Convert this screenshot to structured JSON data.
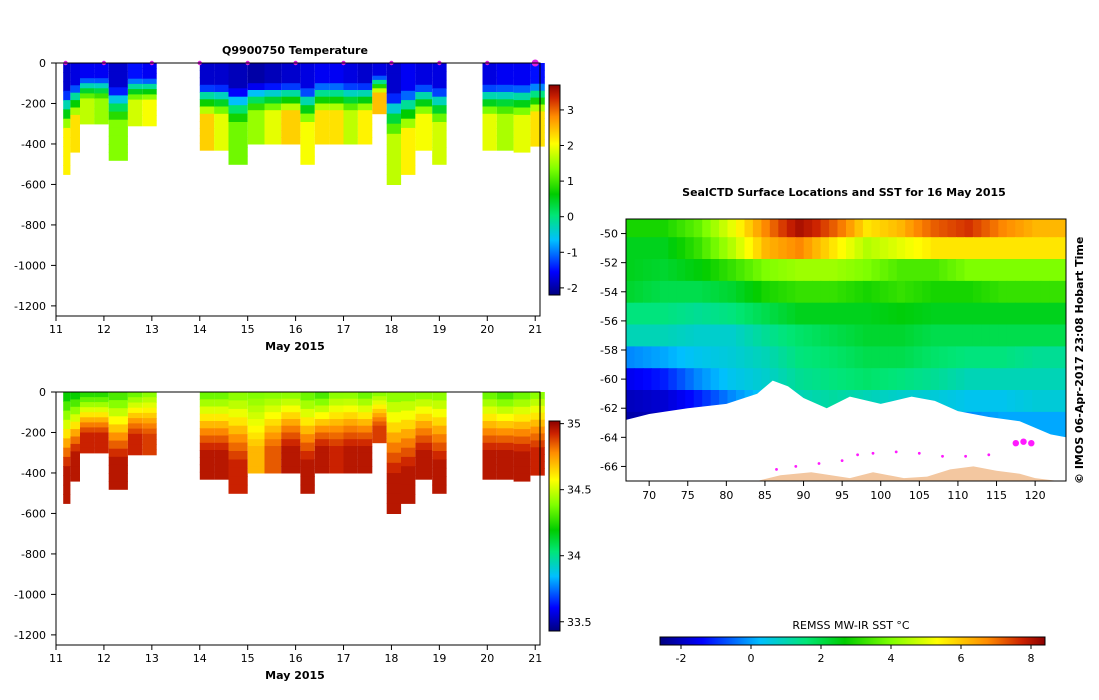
{
  "chart_data": [
    {
      "type": "heatmap",
      "id": "temperature",
      "title": "Q9900750  Temperature",
      "xlabel": "May 2015",
      "ylabel": "",
      "x_ticks": [
        "11",
        "12",
        "13",
        "14",
        "15",
        "16",
        "17",
        "18",
        "19",
        "20",
        "21"
      ],
      "y_ticks": [
        "0",
        "-200",
        "-400",
        "-600",
        "-800",
        "-1000",
        "-1200"
      ],
      "xlim": [
        11,
        21.1
      ],
      "ylim": [
        -1250,
        0
      ],
      "colorbar": {
        "ticks": [
          "3",
          "2",
          "1",
          "0",
          "-1",
          "-2"
        ],
        "range": [
          -2.2,
          3.7
        ],
        "palette": [
          "#00007f",
          "#0000ff",
          "#00bfff",
          "#00e676",
          "#00cc00",
          "#7fff00",
          "#ffff00",
          "#ff8c00",
          "#cc2200",
          "#8b0000"
        ]
      },
      "surface_markers_day": [
        11.2,
        12.0,
        13.0,
        14.0,
        15.0,
        16.0,
        17.0,
        18.0,
        19.0,
        20.0,
        21.0
      ],
      "profiles": [
        {
          "day": 11.15,
          "depth": 550,
          "surface": -1.8,
          "deep": 1.8
        },
        {
          "day": 11.3,
          "depth": 440,
          "surface": -1.7,
          "deep": 1.9
        },
        {
          "day": 11.5,
          "depth": 300,
          "surface": -1.6,
          "deep": 1.4
        },
        {
          "day": 11.8,
          "depth": 300,
          "surface": -1.6,
          "deep": 1.2
        },
        {
          "day": 12.1,
          "depth": 480,
          "surface": -1.8,
          "deep": 1.1
        },
        {
          "day": 12.5,
          "depth": 310,
          "surface": -1.5,
          "deep": 1.5
        },
        {
          "day": 12.8,
          "depth": 310,
          "surface": -1.6,
          "deep": 1.7
        },
        {
          "day": 14.0,
          "depth": 430,
          "surface": -1.8,
          "deep": 2.0
        },
        {
          "day": 14.3,
          "depth": 430,
          "surface": -1.8,
          "deep": 1.6
        },
        {
          "day": 14.6,
          "depth": 500,
          "surface": -1.9,
          "deep": 1.0
        },
        {
          "day": 15.0,
          "depth": 400,
          "surface": -2.0,
          "deep": 1.2
        },
        {
          "day": 15.35,
          "depth": 400,
          "surface": -1.9,
          "deep": 1.6
        },
        {
          "day": 15.7,
          "depth": 400,
          "surface": -1.8,
          "deep": 2.0
        },
        {
          "day": 16.1,
          "depth": 500,
          "surface": -1.7,
          "deep": 1.7
        },
        {
          "day": 16.4,
          "depth": 400,
          "surface": -1.6,
          "deep": 1.9
        },
        {
          "day": 16.7,
          "depth": 400,
          "surface": -1.6,
          "deep": 1.9
        },
        {
          "day": 17.0,
          "depth": 400,
          "surface": -1.7,
          "deep": 1.4
        },
        {
          "day": 17.3,
          "depth": 400,
          "surface": -1.8,
          "deep": 1.8
        },
        {
          "day": 17.6,
          "depth": 250,
          "surface": -1.7,
          "deep": 2.1
        },
        {
          "day": 17.9,
          "depth": 600,
          "surface": -1.8,
          "deep": 1.4
        },
        {
          "day": 18.2,
          "depth": 550,
          "surface": -1.6,
          "deep": 1.8
        },
        {
          "day": 18.5,
          "depth": 430,
          "surface": -1.7,
          "deep": 1.7
        },
        {
          "day": 18.85,
          "depth": 500,
          "surface": -1.7,
          "deep": 1.5
        },
        {
          "day": 19.9,
          "depth": 430,
          "surface": -1.7,
          "deep": 1.6
        },
        {
          "day": 20.2,
          "depth": 430,
          "surface": -1.6,
          "deep": 1.3
        },
        {
          "day": 20.55,
          "depth": 440,
          "surface": -1.6,
          "deep": 1.6
        },
        {
          "day": 20.9,
          "depth": 410,
          "surface": -1.5,
          "deep": 1.9
        }
      ]
    },
    {
      "type": "heatmap",
      "id": "salinity",
      "title": "",
      "xlabel": "May 2015",
      "ylabel": "",
      "x_ticks": [
        "11",
        "12",
        "13",
        "14",
        "15",
        "16",
        "17",
        "18",
        "19",
        "20",
        "21"
      ],
      "y_ticks": [
        "0",
        "-200",
        "-400",
        "-600",
        "-800",
        "-1000",
        "-1200"
      ],
      "xlim": [
        11,
        21.1
      ],
      "ylim": [
        -1250,
        0
      ],
      "colorbar": {
        "ticks": [
          "35",
          "34.5",
          "34",
          "33.5"
        ],
        "range": [
          33.43,
          35.02
        ],
        "palette": [
          "#00007f",
          "#0000ff",
          "#00bfff",
          "#00e676",
          "#00cc00",
          "#7fff00",
          "#ffff00",
          "#ff8c00",
          "#cc2200",
          "#8b0000"
        ]
      },
      "profiles": [
        {
          "day": 11.15,
          "depth": 550,
          "surface": 34.1,
          "deep": 34.9
        },
        {
          "day": 11.3,
          "depth": 440,
          "surface": 34.1,
          "deep": 34.9
        },
        {
          "day": 11.5,
          "depth": 300,
          "surface": 34.15,
          "deep": 34.85
        },
        {
          "day": 11.8,
          "depth": 300,
          "surface": 34.15,
          "deep": 34.85
        },
        {
          "day": 12.1,
          "depth": 480,
          "surface": 34.2,
          "deep": 34.9
        },
        {
          "day": 12.5,
          "depth": 310,
          "surface": 34.25,
          "deep": 34.85
        },
        {
          "day": 12.8,
          "depth": 310,
          "surface": 34.3,
          "deep": 34.8
        },
        {
          "day": 14.0,
          "depth": 430,
          "surface": 34.25,
          "deep": 34.9
        },
        {
          "day": 14.3,
          "depth": 430,
          "surface": 34.25,
          "deep": 34.9
        },
        {
          "day": 14.6,
          "depth": 500,
          "surface": 34.3,
          "deep": 34.85
        },
        {
          "day": 15.0,
          "depth": 400,
          "surface": 34.3,
          "deep": 34.6
        },
        {
          "day": 15.35,
          "depth": 400,
          "surface": 34.3,
          "deep": 34.75
        },
        {
          "day": 15.7,
          "depth": 400,
          "surface": 34.3,
          "deep": 34.9
        },
        {
          "day": 16.1,
          "depth": 500,
          "surface": 34.25,
          "deep": 34.9
        },
        {
          "day": 16.4,
          "depth": 400,
          "surface": 34.2,
          "deep": 34.9
        },
        {
          "day": 16.7,
          "depth": 400,
          "surface": 34.3,
          "deep": 34.85
        },
        {
          "day": 17.0,
          "depth": 400,
          "surface": 34.3,
          "deep": 34.9
        },
        {
          "day": 17.3,
          "depth": 400,
          "surface": 34.25,
          "deep": 34.9
        },
        {
          "day": 17.6,
          "depth": 250,
          "surface": 34.3,
          "deep": 34.8
        },
        {
          "day": 17.9,
          "depth": 600,
          "surface": 34.3,
          "deep": 34.9
        },
        {
          "day": 18.2,
          "depth": 550,
          "surface": 34.3,
          "deep": 34.9
        },
        {
          "day": 18.5,
          "depth": 430,
          "surface": 34.3,
          "deep": 34.9
        },
        {
          "day": 18.85,
          "depth": 500,
          "surface": 34.3,
          "deep": 34.9
        },
        {
          "day": 19.9,
          "depth": 430,
          "surface": 34.25,
          "deep": 34.9
        },
        {
          "day": 20.2,
          "depth": 430,
          "surface": 34.2,
          "deep": 34.9
        },
        {
          "day": 20.55,
          "depth": 440,
          "surface": 34.25,
          "deep": 34.9
        },
        {
          "day": 20.9,
          "depth": 410,
          "surface": 34.3,
          "deep": 34.85
        }
      ]
    },
    {
      "type": "heatmap",
      "id": "sst-map",
      "title": "SealCTD Surface Locations and SST for 16 May 2015",
      "xlabel": "",
      "ylabel": "",
      "x_ticks": [
        "70",
        "75",
        "80",
        "85",
        "90",
        "95",
        "100",
        "105",
        "110",
        "115",
        "120"
      ],
      "y_ticks": [
        "-50",
        "-52",
        "-54",
        "-56",
        "-58",
        "-60",
        "-62",
        "-64",
        "-66"
      ],
      "xlim": [
        67,
        124
      ],
      "ylim": [
        -67,
        -49
      ],
      "side_label": "© IMOS 06-Apr-2017 23:08 Hobart Time",
      "colorbar": {
        "label": "REMSS MW-IR SST °C",
        "ticks": [
          "-2",
          "0",
          "2",
          "4",
          "6",
          "8"
        ],
        "range": [
          -2.6,
          8.4
        ],
        "palette": [
          "#00007f",
          "#0000ff",
          "#00bfff",
          "#00e676",
          "#00cc00",
          "#7fff00",
          "#ffff00",
          "#ff8c00",
          "#cc2200",
          "#8b0000"
        ]
      },
      "sst_rows": [
        {
          "lat": -49.5,
          "values": [
            2.5,
            2.5,
            3.2,
            4.5,
            6.0,
            7.8,
            6.5,
            5.0,
            5.5,
            6.5,
            7.0,
            6.0,
            5.5
          ]
        },
        {
          "lat": -51.0,
          "values": [
            2.0,
            2.0,
            2.8,
            4.0,
            5.5,
            6.0,
            5.0,
            4.0,
            4.5,
            5.0,
            5.0,
            5.0,
            5.0
          ]
        },
        {
          "lat": -52.5,
          "values": [
            2.0,
            1.8,
            2.2,
            2.8,
            3.5,
            3.8,
            3.8,
            3.5,
            3.0,
            3.0,
            3.5,
            3.5,
            3.5
          ]
        },
        {
          "lat": -54.0,
          "values": [
            1.8,
            1.5,
            1.5,
            1.8,
            2.5,
            2.8,
            2.8,
            2.5,
            2.8,
            2.5,
            2.5,
            2.8,
            2.8
          ]
        },
        {
          "lat": -55.5,
          "values": [
            1.0,
            1.0,
            0.8,
            1.0,
            1.5,
            2.0,
            2.0,
            2.0,
            2.2,
            2.0,
            2.0,
            2.0,
            2.0
          ]
        },
        {
          "lat": -57.0,
          "values": [
            0.5,
            0.5,
            0.3,
            0.3,
            0.8,
            1.2,
            1.5,
            1.8,
            1.8,
            1.5,
            1.5,
            1.5,
            1.5
          ]
        },
        {
          "lat": -58.5,
          "values": [
            -0.5,
            -0.3,
            0.0,
            0.2,
            0.5,
            1.0,
            1.2,
            1.5,
            1.5,
            1.2,
            1.0,
            1.0,
            0.8
          ]
        },
        {
          "lat": -60.0,
          "values": [
            -1.5,
            -1.2,
            -0.5,
            0.0,
            0.3,
            0.8,
            1.0,
            1.2,
            1.0,
            0.8,
            0.5,
            0.5,
            0.5
          ]
        },
        {
          "lat": -61.5,
          "values": [
            -2.0,
            -1.8,
            -1.2,
            -0.5,
            0.0,
            0.5,
            0.7,
            0.5,
            0.3,
            0.2,
            0.0,
            0.0,
            0.2
          ]
        },
        {
          "lat": -63.0,
          "values": [
            -2.2,
            -2.0,
            -1.5,
            -1.0,
            -0.5,
            0.0,
            0.3,
            0.0,
            -0.3,
            -0.5,
            -0.5,
            -0.3,
            -0.3
          ]
        }
      ],
      "ice_edge": [
        [
          67,
          -62.8
        ],
        [
          70,
          -62.4
        ],
        [
          75,
          -62.0
        ],
        [
          80,
          -61.7
        ],
        [
          84,
          -61.0
        ],
        [
          86,
          -60.1
        ],
        [
          88,
          -60.5
        ],
        [
          90,
          -61.3
        ],
        [
          93,
          -62.0
        ],
        [
          96,
          -61.2
        ],
        [
          100,
          -61.7
        ],
        [
          104,
          -61.2
        ],
        [
          107,
          -61.5
        ],
        [
          110,
          -62.2
        ],
        [
          114,
          -62.6
        ],
        [
          118,
          -62.9
        ],
        [
          122,
          -63.8
        ],
        [
          124,
          -64.0
        ]
      ],
      "seal_positions": [
        [
          86.5,
          -66.2
        ],
        [
          89,
          -66.0
        ],
        [
          92,
          -65.8
        ],
        [
          95,
          -65.6
        ],
        [
          97,
          -65.2
        ],
        [
          99,
          -65.1
        ],
        [
          102,
          -65.0
        ],
        [
          105,
          -65.1
        ],
        [
          108,
          -65.3
        ],
        [
          111,
          -65.3
        ],
        [
          114,
          -65.2
        ],
        [
          117.5,
          -64.4
        ],
        [
          118.5,
          -64.3
        ],
        [
          119.5,
          -64.4
        ]
      ],
      "land_patches": [
        [
          [
            84,
            -67
          ],
          [
            87,
            -66.6
          ],
          [
            91,
            -66.4
          ],
          [
            96,
            -66.8
          ],
          [
            99,
            -66.4
          ],
          [
            103,
            -66.8
          ],
          [
            106,
            -66.7
          ],
          [
            109,
            -66.2
          ],
          [
            112,
            -66.0
          ],
          [
            115,
            -66.3
          ],
          [
            118,
            -66.5
          ],
          [
            120,
            -66.8
          ],
          [
            123,
            -67
          ]
        ]
      ]
    }
  ]
}
